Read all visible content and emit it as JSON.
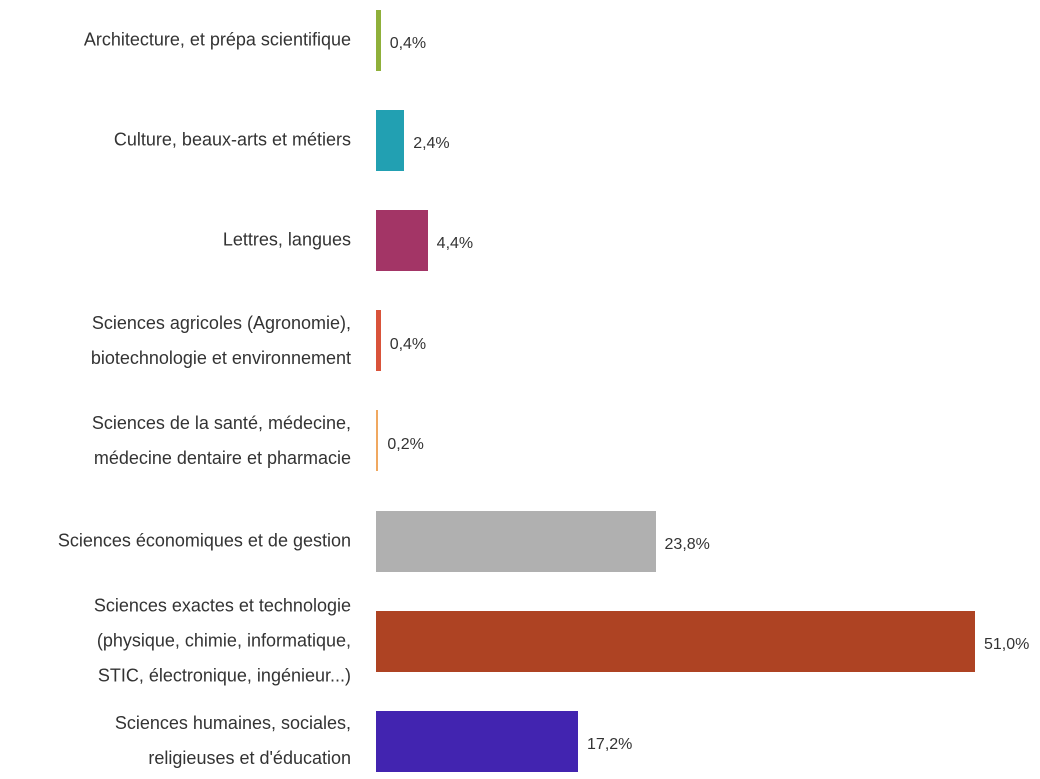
{
  "chart_data": {
    "type": "bar",
    "orientation": "horizontal",
    "categories": [
      "Architecture, et prépa scientifique",
      "Culture, beaux-arts et métiers",
      "Lettres, langues",
      "Sciences agricoles (Agronomie),\nbiotechnologie et environnement",
      "Sciences de la santé, médecine,\nmédecine dentaire et pharmacie",
      "Sciences économiques et de gestion",
      "Sciences exactes et technologie\n(physique, chimie, informatique,\nSTIC, électronique, ingénieur...)",
      "Sciences humaines, sociales,\nreligieuses et d'éducation"
    ],
    "values": [
      0.4,
      2.4,
      4.4,
      0.4,
      0.2,
      23.8,
      51.0,
      17.2
    ],
    "value_labels": [
      "0,4%",
      "2,4%",
      "4,4%",
      "0,4%",
      "0,2%",
      "23,8%",
      "51,0%",
      "17,2%"
    ],
    "colors": [
      "#8fb03a",
      "#22a0b2",
      "#a33566",
      "#d9533a",
      "#f0a860",
      "#b0b0b0",
      "#ae4323",
      "#4224b0"
    ]
  }
}
